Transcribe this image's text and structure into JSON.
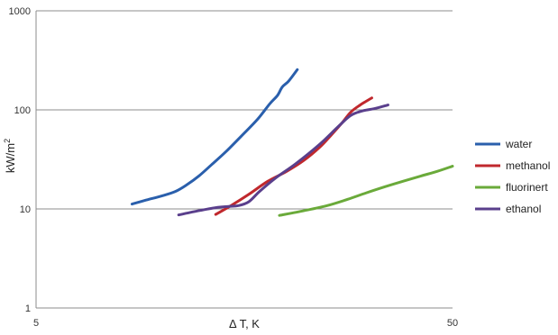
{
  "chart_data": {
    "type": "line",
    "title": "",
    "xlabel": "Δ T, K",
    "ylabel": "kW/m",
    "ylabel_superscript": "2",
    "x_scale": "log",
    "y_scale": "log",
    "xlim": [
      5,
      50
    ],
    "ylim": [
      1,
      1000
    ],
    "x_ticks": [
      "5",
      "50"
    ],
    "y_ticks": [
      "1",
      "10",
      "100",
      "1000"
    ],
    "grid": "horizontal",
    "legend_position": "right",
    "series": [
      {
        "name": "water",
        "color": "#2a5fac",
        "points": [
          [
            8.5,
            11.2
          ],
          [
            9.2,
            12.3
          ],
          [
            10.0,
            13.5
          ],
          [
            10.8,
            15.0
          ],
          [
            11.5,
            17.5
          ],
          [
            12.3,
            21.5
          ],
          [
            13.2,
            28.0
          ],
          [
            14.3,
            38.0
          ],
          [
            15.6,
            55.0
          ],
          [
            17.0,
            80.0
          ],
          [
            18.2,
            115.0
          ],
          [
            19.0,
            140.0
          ],
          [
            19.5,
            170.0
          ],
          [
            20.2,
            195.0
          ],
          [
            21.2,
            255.0
          ]
        ]
      },
      {
        "name": "methanol",
        "color": "#c0282d",
        "points": [
          [
            13.5,
            8.8
          ],
          [
            14.8,
            11.0
          ],
          [
            16.2,
            14.0
          ],
          [
            18.0,
            19.0
          ],
          [
            20.0,
            24.0
          ],
          [
            22.0,
            31.0
          ],
          [
            24.0,
            42.0
          ],
          [
            25.5,
            55.0
          ],
          [
            27.0,
            72.0
          ],
          [
            28.5,
            95.0
          ],
          [
            30.0,
            112.0
          ],
          [
            31.0,
            122.0
          ],
          [
            32.0,
            132.0
          ]
        ]
      },
      {
        "name": "fluorinert",
        "color": "#6aaa3a",
        "points": [
          [
            19.2,
            8.6
          ],
          [
            22.0,
            9.6
          ],
          [
            25.0,
            10.8
          ],
          [
            28.0,
            12.5
          ],
          [
            31.0,
            14.5
          ],
          [
            34.5,
            16.8
          ],
          [
            38.0,
            19.0
          ],
          [
            42.0,
            21.5
          ],
          [
            46.0,
            24.0
          ],
          [
            50.0,
            27.0
          ]
        ]
      },
      {
        "name": "ethanol",
        "color": "#5a3f8c",
        "points": [
          [
            11.0,
            8.7
          ],
          [
            12.3,
            9.6
          ],
          [
            13.5,
            10.3
          ],
          [
            14.5,
            10.6
          ],
          [
            15.3,
            10.8
          ],
          [
            16.2,
            11.8
          ],
          [
            17.2,
            15.0
          ],
          [
            18.8,
            20.5
          ],
          [
            21.0,
            28.5
          ],
          [
            24.0,
            45.0
          ],
          [
            26.5,
            67.0
          ],
          [
            28.5,
            88.0
          ],
          [
            30.5,
            98.0
          ],
          [
            32.5,
            103.0
          ],
          [
            35.0,
            112.0
          ]
        ]
      }
    ]
  }
}
